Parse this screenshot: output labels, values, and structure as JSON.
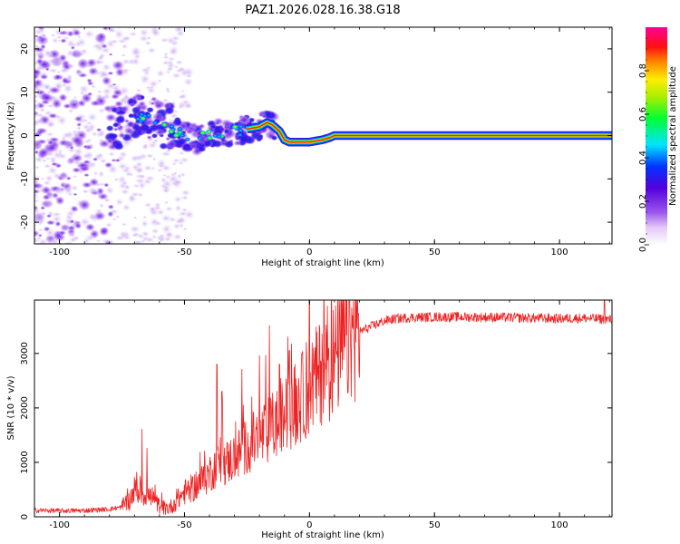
{
  "title": "PAZ1.2026.028.16.38.G18",
  "chart_data": [
    {
      "type": "heatmap",
      "name": "spectrogram",
      "xlabel": "Height of straight line (km)",
      "ylabel": "Frequency (Hz)",
      "xlim": [
        -110,
        121
      ],
      "ylim": [
        -25,
        25
      ],
      "xticks": [
        -100,
        -50,
        0,
        50,
        100
      ],
      "yticks": [
        -20,
        -10,
        0,
        10,
        20
      ],
      "colorbar": {
        "label": "Normalized spectral amplitude",
        "range": [
          0,
          1
        ],
        "ticks": [
          0.0,
          0.2,
          0.4,
          0.6,
          0.8
        ]
      },
      "ridge": {
        "x": [
          -78,
          -70,
          -65,
          -60,
          -55,
          -50,
          -45,
          -40,
          -35,
          -30,
          -25,
          -20,
          -17,
          -15,
          -12,
          -10,
          -8,
          -5,
          0,
          5,
          8,
          10,
          20,
          50,
          100,
          121
        ],
        "freq": [
          2,
          4,
          4.5,
          3,
          1.5,
          0,
          -1,
          0,
          1,
          1,
          1.5,
          2,
          3,
          2.5,
          1,
          -1,
          -1.5,
          -1.5,
          -1.5,
          -1,
          -0.5,
          0,
          0,
          0,
          0,
          0
        ]
      }
    },
    {
      "type": "line",
      "name": "snr",
      "xlabel": "Height of straight line (km)",
      "ylabel": "SNR (10 * v/v)",
      "xlim": [
        -110,
        121
      ],
      "ylim": [
        0,
        3980
      ],
      "xticks": [
        -100,
        -50,
        0,
        50,
        100
      ],
      "yticks": [
        0,
        1000,
        2000,
        3000
      ],
      "color": "#ee2222",
      "envelope": {
        "x": [
          -110,
          -100,
          -90,
          -80,
          -75,
          -72,
          -70,
          -68,
          -66,
          -64,
          -62,
          -60,
          -57,
          -55,
          -52,
          -50,
          -47,
          -45,
          -42,
          -40,
          -38,
          -36,
          -33,
          -30,
          -27,
          -25,
          -22,
          -20,
          -17,
          -15,
          -12,
          -10,
          -7,
          -5,
          -2,
          0,
          3,
          5,
          8,
          10,
          13,
          15,
          18,
          20,
          25,
          30,
          35,
          40,
          50,
          60,
          80,
          100,
          110,
          121
        ],
        "y": [
          120,
          110,
          115,
          140,
          180,
          300,
          500,
          450,
          420,
          380,
          280,
          200,
          150,
          200,
          350,
          450,
          520,
          580,
          700,
          800,
          900,
          950,
          1000,
          1100,
          1200,
          1300,
          1400,
          1450,
          1550,
          1650,
          1750,
          1850,
          1950,
          2100,
          2250,
          2400,
          2550,
          2700,
          2800,
          2900,
          3100,
          3250,
          3350,
          3400,
          3500,
          3600,
          3640,
          3660,
          3670,
          3670,
          3660,
          3640,
          3650,
          3620
        ]
      },
      "peaks": [
        {
          "x": -67,
          "y": 1600
        },
        {
          "x": -65,
          "y": 1250
        },
        {
          "x": -42,
          "y": 1200
        },
        {
          "x": -37,
          "y": 2800
        },
        {
          "x": -35,
          "y": 2300
        },
        {
          "x": -27,
          "y": 2700
        },
        {
          "x": -20,
          "y": 2950
        },
        {
          "x": -16,
          "y": 3500
        },
        {
          "x": -12,
          "y": 2800
        },
        {
          "x": -8,
          "y": 3050
        },
        {
          "x": -3,
          "y": 3000
        },
        {
          "x": 5,
          "y": 3350
        },
        {
          "x": 118,
          "y": 3980
        }
      ]
    }
  ]
}
